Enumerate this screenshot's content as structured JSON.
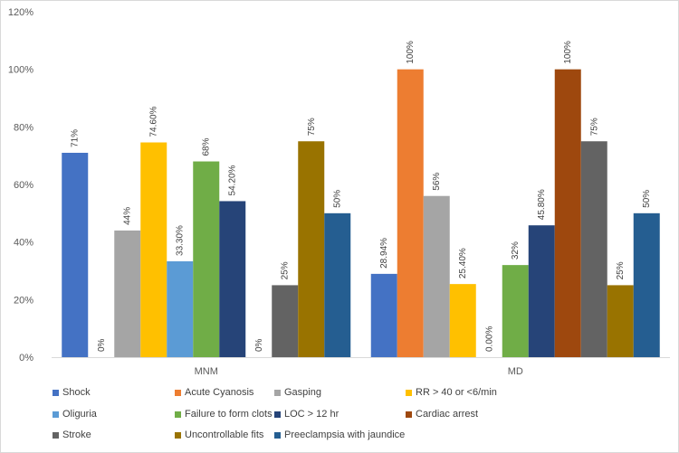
{
  "chart_data": {
    "type": "bar",
    "title": "",
    "xlabel": "",
    "ylabel": "",
    "ylim": [
      0,
      1.2
    ],
    "yticks": [
      0,
      0.2,
      0.4,
      0.6,
      0.8,
      1.0,
      1.2
    ],
    "ytick_labels": [
      "0%",
      "20%",
      "40%",
      "60%",
      "80%",
      "100%",
      "120%"
    ],
    "grid": false,
    "legend_position": "bottom",
    "categories": [
      "MNM",
      "MD"
    ],
    "series": [
      {
        "name": "Shock",
        "color": "#4472C4",
        "values": [
          0.71,
          0.2894
        ],
        "labels": [
          "71%",
          "28.94%"
        ]
      },
      {
        "name": "Acute Cyanosis",
        "color": "#ED7D31",
        "values": [
          0,
          1.0
        ],
        "labels": [
          "0%",
          "100%"
        ]
      },
      {
        "name": "Gasping",
        "color": "#A5A5A5",
        "values": [
          0.44,
          0.56
        ],
        "labels": [
          "44%",
          "56%"
        ]
      },
      {
        "name": "RR > 40 or <6/min",
        "color": "#FFC000",
        "values": [
          0.746,
          0.254
        ],
        "labels": [
          "74.60%",
          "25.40%"
        ]
      },
      {
        "name": "Oliguria",
        "color": "#5B9BD5",
        "values": [
          0.333,
          0
        ],
        "labels": [
          "33.30%",
          "0.00%"
        ]
      },
      {
        "name": "Failure to form clots",
        "color": "#70AD47",
        "values": [
          0.68,
          0.32
        ],
        "labels": [
          "68%",
          "32%"
        ]
      },
      {
        "name": "LOC > 12 hr",
        "color": "#264478",
        "values": [
          0.542,
          0.458
        ],
        "labels": [
          "54.20%",
          "45.80%"
        ]
      },
      {
        "name": "Cardiac arrest",
        "color": "#9E480E",
        "values": [
          0,
          1.0
        ],
        "labels": [
          "0%",
          "100%"
        ]
      },
      {
        "name": "Stroke",
        "color": "#636363",
        "values": [
          0.25,
          0.75
        ],
        "labels": [
          "25%",
          "75%"
        ]
      },
      {
        "name": "Uncontrollable fits",
        "color": "#997300",
        "values": [
          0.75,
          0.25
        ],
        "labels": [
          "75%",
          "25%"
        ]
      },
      {
        "name": "Preeclampsia with jaundice",
        "color": "#255E91",
        "values": [
          0.5,
          0.5
        ],
        "labels": [
          "50%",
          "50%"
        ]
      }
    ]
  }
}
